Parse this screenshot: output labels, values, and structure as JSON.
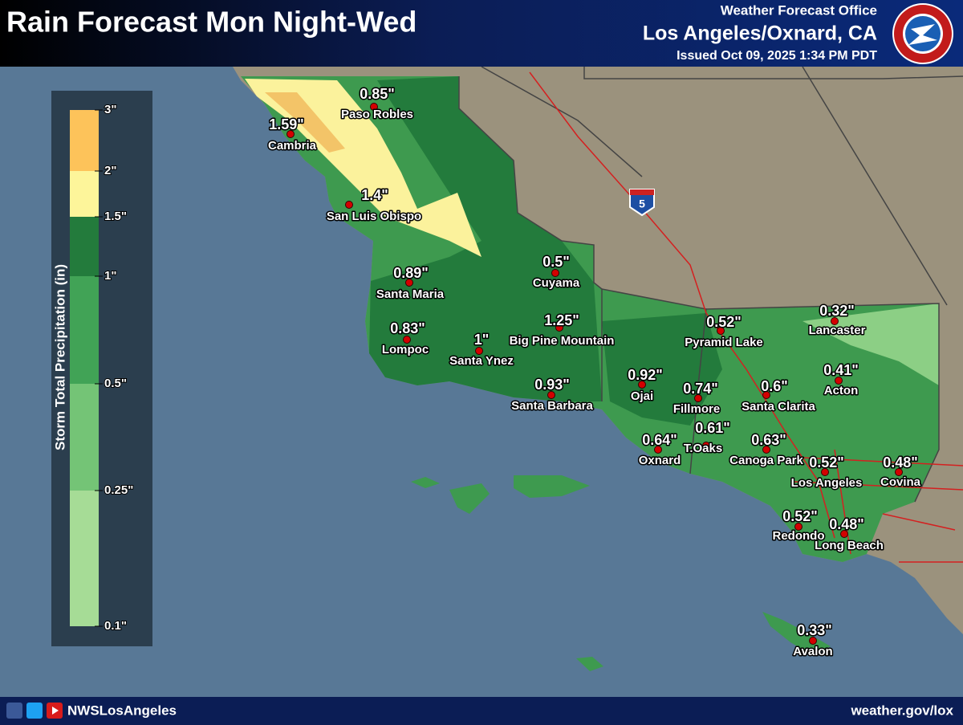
{
  "header": {
    "title": "Rain Forecast Mon Night-Wed",
    "office": "Weather Forecast Office",
    "location": "Los Angeles/Oxnard, CA",
    "issued": "Issued Oct 09, 2025 1:34 PM PDT"
  },
  "legend": {
    "title": "Storm Total Precipitation (in)",
    "ticks": [
      "0.1\"",
      "0.25\"",
      "0.5\"",
      "1\"",
      "1.5\"",
      "2\"",
      "3\""
    ],
    "colors": [
      "#a6dc96",
      "#74c476",
      "#41a356",
      "#237b3c",
      "#fdf59a",
      "#fdc35a"
    ]
  },
  "map": {
    "interstate": "5"
  },
  "cities": [
    {
      "amount": "0.85\"",
      "name": "Paso Robles"
    },
    {
      "amount": "1.59\"",
      "name": "Cambria"
    },
    {
      "amount": "1.4\"",
      "name": "San Luis Obispo"
    },
    {
      "amount": "0.89\"",
      "name": "Santa Maria"
    },
    {
      "amount": "0.5\"",
      "name": "Cuyama"
    },
    {
      "amount": "0.83\"",
      "name": "Lompoc"
    },
    {
      "amount": "1\"",
      "name": "Santa Ynez"
    },
    {
      "amount": "1.25\"",
      "name": "Big Pine Mountain"
    },
    {
      "amount": "0.93\"",
      "name": "Santa Barbara"
    },
    {
      "amount": "0.92\"",
      "name": "Ojai"
    },
    {
      "amount": "0.52\"",
      "name": "Pyramid Lake"
    },
    {
      "amount": "0.32\"",
      "name": "Lancaster"
    },
    {
      "amount": "0.41\"",
      "name": "Acton"
    },
    {
      "amount": "0.74\"",
      "name": "Fillmore"
    },
    {
      "amount": "0.6\"",
      "name": "Santa Clarita"
    },
    {
      "amount": "0.64\"",
      "name": "Oxnard"
    },
    {
      "amount": "0.61\"",
      "name": "T.Oaks"
    },
    {
      "amount": "0.63\"",
      "name": "Canoga Park"
    },
    {
      "amount": "0.52\"",
      "name": "Los Angeles"
    },
    {
      "amount": "0.48\"",
      "name": "Covina"
    },
    {
      "amount": "0.52\"",
      "name": "Redondo"
    },
    {
      "amount": "0.48\"",
      "name": "Long Beach"
    },
    {
      "amount": "0.33\"",
      "name": "Avalon"
    }
  ],
  "footer": {
    "handle": "NWSLosAngeles",
    "website": "weather.gov/lox"
  }
}
